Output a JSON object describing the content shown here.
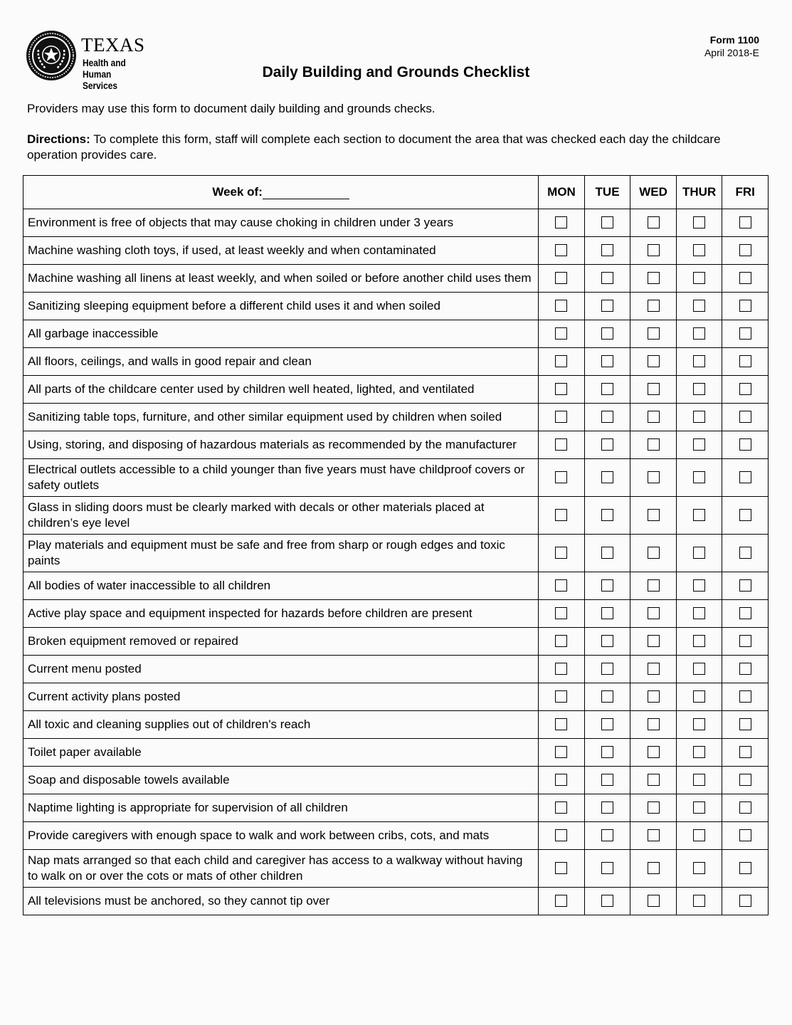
{
  "logo": {
    "line1": "TEXAS",
    "line2": "Health and Human",
    "line3": "Services"
  },
  "form": {
    "number": "Form 1100",
    "date": "April 2018-E"
  },
  "title": "Daily Building and Grounds Checklist",
  "intro": "Providers may use this form to document daily building and grounds checks.",
  "directions": {
    "label": "Directions:",
    "text": " To complete this form, staff will complete each section to document the area that was checked each day the childcare operation provides care."
  },
  "table": {
    "week_label": "Week of:",
    "week_value": "",
    "days": [
      "MON",
      "TUE",
      "WED",
      "THUR",
      "FRI"
    ],
    "items": [
      "Environment is free of objects that may cause choking in children under 3 years",
      "Machine washing cloth toys, if used, at least weekly and when contaminated",
      "Machine washing all linens at least weekly, and when soiled or before another child uses them",
      "Sanitizing sleeping equipment before a different child uses it and when soiled",
      "All garbage inaccessible",
      "All floors, ceilings, and walls in good repair and clean",
      "All parts of the childcare center used by children well heated, lighted, and ventilated",
      "Sanitizing table tops, furniture, and other similar equipment used by children when soiled",
      "Using, storing, and disposing of hazardous materials as recommended by the manufacturer",
      "Electrical outlets accessible to a child younger than five years must have childproof covers or safety outlets",
      "Glass in sliding doors must be clearly marked with decals or other materials placed at children’s eye level",
      "Play materials and equipment must be safe and free from sharp or rough edges and toxic paints",
      "All bodies of water inaccessible to all children",
      "Active play space and equipment inspected for hazards before children are present",
      "Broken equipment removed or repaired",
      "Current menu posted",
      "Current activity plans posted",
      "All toxic and cleaning supplies out of children's reach",
      "Toilet paper available",
      "Soap and disposable towels available",
      "Naptime lighting is appropriate for supervision of all children",
      "Provide caregivers with enough space to walk and work between cribs, cots, and mats",
      "Nap mats arranged so that each child and caregiver has access to a walkway without having to walk on or over the cots or mats of other children",
      "All televisions must be anchored, so they cannot tip over"
    ]
  }
}
